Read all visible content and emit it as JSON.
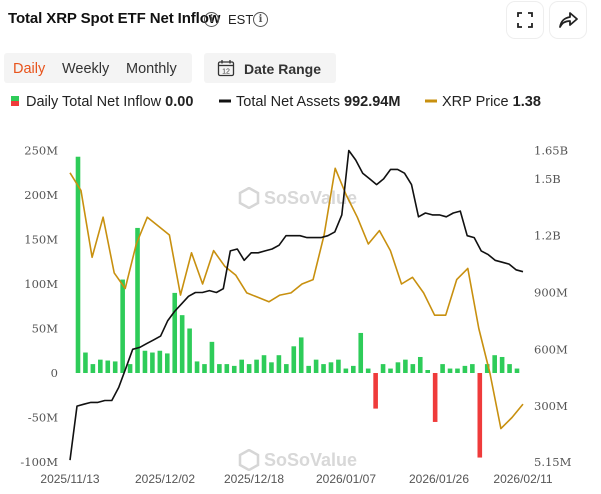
{
  "header": {
    "title": "Total XRP Spot ETF Net Inflow",
    "timezone": "EST"
  },
  "tabs": [
    {
      "label": "Daily",
      "active": true
    },
    {
      "label": "Weekly",
      "active": false
    },
    {
      "label": "Monthly",
      "active": false
    }
  ],
  "date_range_label": "Date Range",
  "calendar_day": "12",
  "legend": [
    {
      "label": "Daily Total Net Inflow",
      "value": "0.00",
      "color": "#2ecc59"
    },
    {
      "label": "Total Net Assets",
      "value": "992.94M",
      "color": "#111111"
    },
    {
      "label": "XRP Price",
      "value": "1.38",
      "color": "#c8900f"
    }
  ],
  "watermark": "SoSoValue",
  "colors": {
    "inflow": "#2ecc59",
    "outflow": "#ef3b3b",
    "assets": "#111111",
    "price": "#c8900f",
    "accent": "#e8541c"
  },
  "chart_data": {
    "type": "bar+line",
    "x_tick_labels": [
      "2025/11/13",
      "2025/12/02",
      "2025/12/18",
      "2026/01/07",
      "2026/01/26",
      "2026/02/11"
    ],
    "left_axis": {
      "ticks": [
        "250M",
        "200M",
        "150M",
        "100M",
        "50M",
        "0",
        "-50M",
        "-100M"
      ],
      "range": [
        -100,
        250
      ],
      "unit": "M"
    },
    "right_axis": {
      "ticks": [
        "1.65B",
        "1.5B",
        "1.2B",
        "900M",
        "600M",
        "300M",
        "5.15M"
      ]
    },
    "grid": false,
    "series": [
      {
        "name": "Daily Total Net Inflow",
        "axis": "left",
        "unit": "M",
        "values": [
          243,
          23,
          10,
          15,
          14,
          13,
          105,
          10,
          163,
          25,
          23,
          25,
          22,
          90,
          65,
          50,
          13,
          10,
          35,
          10,
          10,
          8,
          15,
          10,
          15,
          20,
          12,
          20,
          10,
          30,
          40,
          8,
          15,
          10,
          12,
          15,
          5,
          8,
          45,
          5,
          -40,
          10,
          5,
          12,
          15,
          10,
          18,
          3,
          -55,
          10,
          5,
          5,
          8,
          10,
          -95,
          10,
          20,
          18,
          10,
          5
        ]
      },
      {
        "name": "Total Net Assets",
        "axis": "right",
        "unit": "B",
        "values": [
          0.015,
          0.3,
          0.31,
          0.32,
          0.32,
          0.33,
          0.33,
          0.4,
          0.5,
          0.6,
          0.61,
          0.63,
          0.65,
          0.67,
          0.75,
          0.8,
          0.84,
          0.88,
          0.9,
          0.9,
          0.91,
          0.9,
          0.92,
          1.12,
          1.13,
          1.07,
          1.11,
          1.11,
          1.12,
          1.13,
          1.15,
          1.2,
          1.2,
          1.2,
          1.19,
          1.19,
          1.19,
          1.2,
          1.22,
          1.31,
          1.65,
          1.6,
          1.53,
          1.5,
          1.47,
          1.5,
          1.55,
          1.55,
          1.53,
          1.47,
          1.3,
          1.32,
          1.31,
          1.31,
          1.3,
          1.32,
          1.33,
          1.2,
          1.19,
          1.12,
          1.1,
          1.07,
          1.06,
          1.05,
          1.02,
          1.01
        ]
      },
      {
        "name": "XRP Price",
        "axis": "right",
        "unit": "USD",
        "values": [
          2.4,
          2.32,
          2.02,
          2.2,
          1.95,
          1.88,
          2.08,
          2.2,
          2.16,
          2.12,
          1.85,
          2.04,
          1.9,
          2.05,
          1.98,
          1.94,
          1.86,
          1.84,
          1.82,
          1.85,
          1.86,
          1.9,
          1.92,
          2.12,
          2.42,
          2.3,
          2.2,
          2.08,
          2.14,
          2.05,
          1.9,
          1.93,
          1.86,
          1.76,
          1.76,
          1.92,
          1.97,
          1.7,
          1.5,
          1.25,
          1.3,
          1.36
        ]
      }
    ]
  }
}
